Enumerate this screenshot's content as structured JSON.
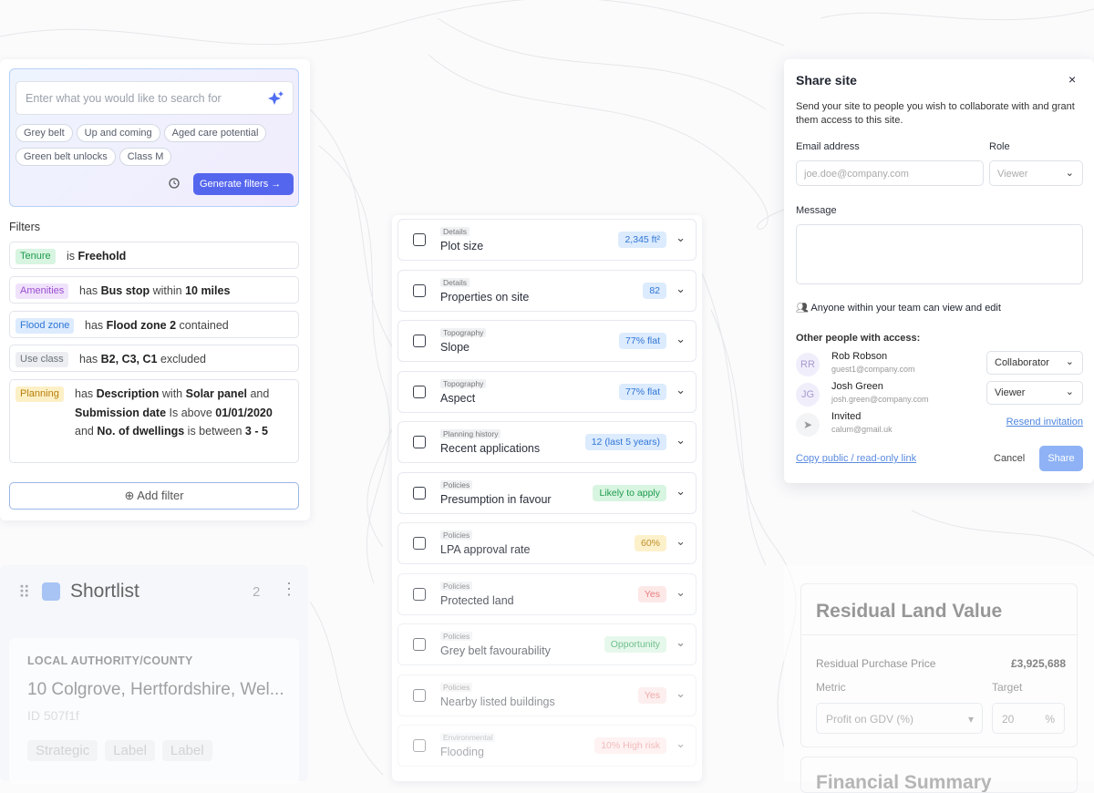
{
  "search": {
    "placeholder": "Enter what you would like to search for",
    "chips": [
      "Grey belt",
      "Up and coming",
      "Aged care potential",
      "Green belt unlocks",
      "Class M"
    ],
    "button": "Generate filters"
  },
  "filters": {
    "title": "Filters",
    "items": [
      {
        "tag": "Tenure",
        "tone": "green",
        "parts": [
          {
            "text": "is"
          },
          {
            "text": "Freehold",
            "bold": true
          }
        ]
      },
      {
        "tag": "Amenities",
        "tone": "purple",
        "parts": [
          {
            "text": "has"
          },
          {
            "text": "Bus stop",
            "bold": true
          },
          {
            "text": "within"
          },
          {
            "text": "10 miles",
            "bold": true
          }
        ]
      },
      {
        "tag": "Flood zone",
        "tone": "blue",
        "parts": [
          {
            "text": "has"
          },
          {
            "text": "Flood zone 2",
            "bold": true
          },
          {
            "text": "contained"
          }
        ]
      },
      {
        "tag": "Use class",
        "tone": "gray",
        "parts": [
          {
            "text": "has"
          },
          {
            "text": "B2, C3, C1",
            "bold": true
          },
          {
            "text": "excluded"
          }
        ]
      },
      {
        "tag": "Planning",
        "tone": "yellow",
        "parts": [
          {
            "text": "has"
          },
          {
            "text": "Description",
            "bold": true
          },
          {
            "text": "with"
          },
          {
            "text": "Solar panel",
            "bold": true
          },
          {
            "text": "and"
          },
          {
            "text": "Submission date",
            "bold": true
          },
          {
            "text": "Is above"
          },
          {
            "text": "01/01/2020",
            "bold": true
          },
          {
            "text": "and"
          },
          {
            "text": "No. of dwellings",
            "bold": true
          },
          {
            "text": "is between"
          },
          {
            "text": "3 - 5",
            "bold": true
          }
        ]
      }
    ],
    "add": "Add filter"
  },
  "shortlist": {
    "title": "Shortlist",
    "count": "2",
    "card": {
      "heading": "LOCAL AUTHORITY/COUNTY",
      "address": "10 Colgrove, Hertfordshire, Wel...",
      "id": "ID 507f1f",
      "tags": [
        "Strategic",
        "Label",
        "Label"
      ]
    }
  },
  "insights": [
    {
      "category": "Details",
      "label": "Plot size",
      "badge": "2,345 ft²",
      "tone": "blue"
    },
    {
      "category": "Details",
      "label": "Properties on site",
      "badge": "82",
      "tone": "blue"
    },
    {
      "category": "Topography",
      "label": "Slope",
      "badge": "77% flat",
      "tone": "blue"
    },
    {
      "category": "Topography",
      "label": "Aspect",
      "badge": "77% flat",
      "tone": "blue"
    },
    {
      "category": "Planning history",
      "label": "Recent applications",
      "badge": "12 (last 5 years)",
      "tone": "blue"
    },
    {
      "category": "Policies",
      "label": "Presumption in favour",
      "badge": "Likely to apply",
      "tone": "green"
    },
    {
      "category": "Policies",
      "label": "LPA approval rate",
      "badge": "60%",
      "tone": "yellow"
    },
    {
      "category": "Policies",
      "label": "Protected land",
      "badge": "Yes",
      "tone": "red"
    },
    {
      "category": "Policies",
      "label": "Grey belt favourability",
      "badge": "Opportunity",
      "tone": "green"
    },
    {
      "category": "Policies",
      "label": "Nearby listed buildings",
      "badge": "Yes",
      "tone": "red"
    },
    {
      "category": "Environmental",
      "label": "Flooding",
      "badge": "10% High risk",
      "tone": "red"
    }
  ],
  "share": {
    "title": "Share site",
    "close": "×",
    "description": "Send your site to people you wish to collaborate with and grant them access to this site.",
    "email_label": "Email address",
    "email_placeholder": "joe.doe@company.com",
    "role_label": "Role",
    "role_value": "Viewer",
    "message_label": "Message",
    "team_note": "Anyone within your team can view and edit",
    "others_title": "Other people with access:",
    "people": [
      {
        "initials": "RR",
        "name": "Rob Robson",
        "email": "guest1@company.com",
        "role": "Collaborator"
      },
      {
        "initials": "JG",
        "name": "Josh Green",
        "email": "josh.green@company.com",
        "role": "Viewer"
      },
      {
        "name": "Invited",
        "email": "calum@gmail.uk",
        "action": "Resend invitation"
      }
    ],
    "copy_link": "Copy public / read-only link",
    "cancel": "Cancel",
    "submit": "Share"
  },
  "residual": {
    "title": "Residual Land Value",
    "price_label": "Residual Purchase Price",
    "price_value": "£3,925,688",
    "metric_label": "Metric",
    "target_label": "Target",
    "metric_value": "Profit on GDV (%)",
    "target_value": "20",
    "target_unit": "%",
    "next_title": "Financial Summary"
  }
}
